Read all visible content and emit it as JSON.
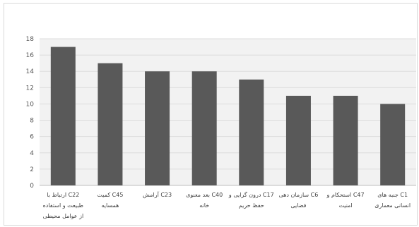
{
  "chart_data": {
    "type": "bar",
    "title": "",
    "xlabel": "",
    "ylabel": "",
    "ylim": [
      0,
      18
    ],
    "yticks": [
      0,
      2,
      4,
      6,
      8,
      10,
      12,
      14,
      16,
      18
    ],
    "grid": true,
    "legend": "none",
    "bar_color": "#595959",
    "plot_background": "#f2f2f2",
    "categories": [
      [
        "C22 ارتباط با",
        "طبیعت و استفاده",
        "از عوامل محیطی"
      ],
      [
        "C45 کمیت",
        "همسایه"
      ],
      [
        "C23 آرامش"
      ],
      [
        "C40 بعد معنوی",
        "خانه"
      ],
      [
        "C17 درون گرایی و",
        "حفظ حریم"
      ],
      [
        "C6 سازمان دهی",
        "فضایی"
      ],
      [
        "C47 استحکام و",
        "امنیت"
      ],
      [
        "C1 جنبه های",
        "انسانی معماری"
      ]
    ],
    "values": [
      17,
      15,
      14,
      14,
      13,
      11,
      11,
      10
    ]
  }
}
